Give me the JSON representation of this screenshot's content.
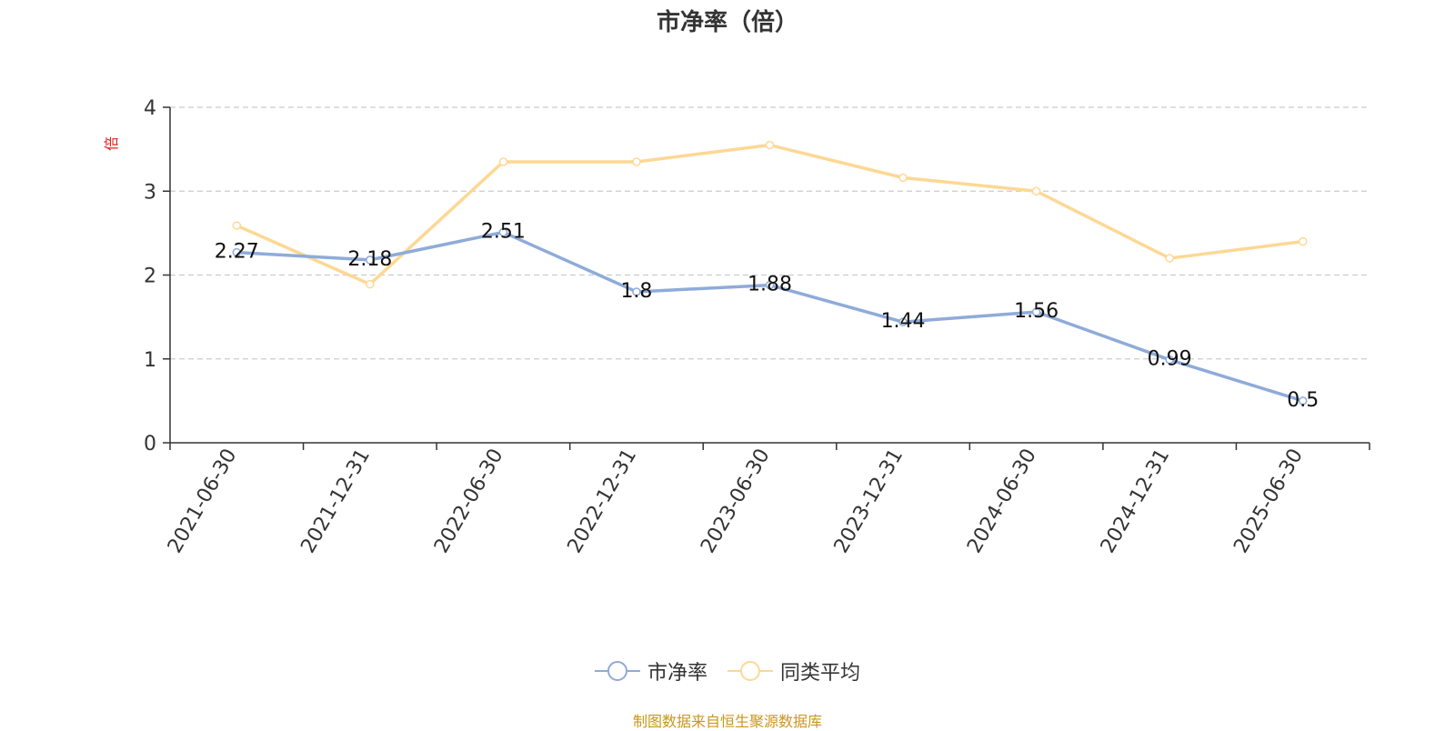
{
  "chart_data": {
    "type": "line",
    "title": "市净率（倍）",
    "ylabel": "倍",
    "xlabel": "",
    "categories": [
      "2021-06-30",
      "2021-12-31",
      "2022-06-30",
      "2022-12-31",
      "2023-06-30",
      "2023-12-31",
      "2024-06-30",
      "2024-12-31",
      "2025-06-30"
    ],
    "ylim": [
      0,
      4
    ],
    "yticks": [
      0,
      1,
      2,
      3,
      4
    ],
    "grid": true,
    "legend_position": "bottom",
    "series": [
      {
        "name": "市净率",
        "color": "#8eabd9",
        "show_labels": true,
        "values": [
          2.27,
          2.18,
          2.51,
          1.8,
          1.88,
          1.44,
          1.56,
          0.99,
          0.5
        ]
      },
      {
        "name": "同类平均",
        "color": "#fdd894",
        "show_labels": false,
        "values": [
          2.59,
          1.89,
          3.35,
          3.35,
          3.55,
          3.16,
          3.0,
          2.2,
          2.4
        ]
      }
    ]
  },
  "footer": "制图数据来自恒生聚源数据库",
  "colors": {
    "ylabel": "#e02020",
    "footer": "#c9971b"
  }
}
